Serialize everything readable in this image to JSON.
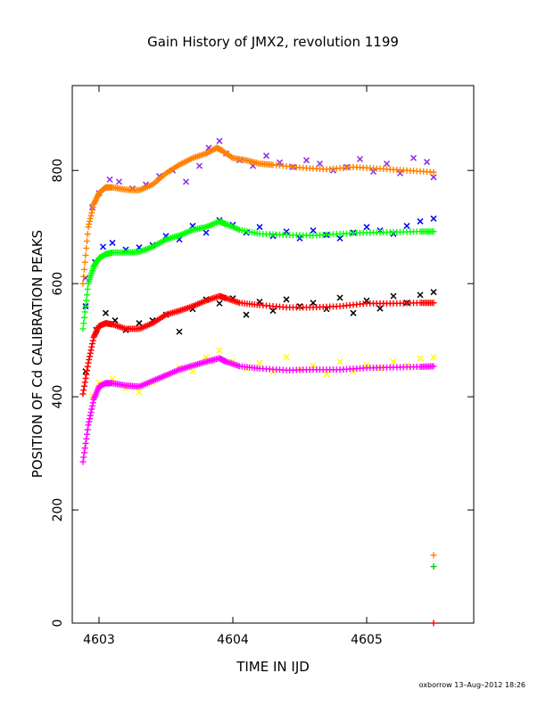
{
  "chart_data": {
    "type": "scatter",
    "title": "Gain History of JMX2, revolution 1199",
    "xlabel": "TIME IN IJD",
    "ylabel": "POSITION OF Cd CALIBRATION PEAKS",
    "xlim": [
      4602.8,
      4605.8
    ],
    "ylim": [
      0,
      950
    ],
    "xticks": [
      4603,
      4604,
      4605
    ],
    "xtick_labels": [
      "4603",
      "4604",
      "4605"
    ],
    "yticks": [
      0,
      200,
      400,
      600,
      800
    ],
    "ytick_labels": [
      "0",
      "200",
      "400",
      "600",
      "800"
    ],
    "footer": "oxborrow 13–Aug–2012 18:26",
    "series": [
      {
        "role": "fit",
        "marker": "plus",
        "color": "#ff8000",
        "x": [
          4602.88,
          4602.92,
          4602.96,
          4603.0,
          4603.05,
          4603.1,
          4603.2,
          4603.3,
          4603.4,
          4603.5,
          4603.6,
          4603.7,
          4603.8,
          4603.88,
          4603.92,
          4604.0,
          4604.1,
          4604.2,
          4604.3,
          4604.5,
          4604.7,
          4604.9,
          4605.1,
          4605.3,
          4605.5
        ],
        "y": [
          600,
          700,
          740,
          760,
          770,
          770,
          766,
          765,
          775,
          795,
          810,
          822,
          830,
          840,
          835,
          822,
          818,
          812,
          810,
          805,
          802,
          806,
          803,
          800,
          797
        ]
      },
      {
        "role": "data",
        "marker": "x",
        "color": "#8a2be2",
        "x": [
          4602.9,
          4602.95,
          4603.0,
          4603.08,
          4603.15,
          4603.25,
          4603.35,
          4603.45,
          4603.55,
          4603.65,
          4603.75,
          4603.82,
          4603.9,
          4603.95,
          4604.05,
          4604.15,
          4604.25,
          4604.35,
          4604.45,
          4604.55,
          4604.65,
          4604.75,
          4604.85,
          4604.95,
          4605.05,
          4605.15,
          4605.25,
          4605.35,
          4605.45,
          4605.5
        ],
        "y": [
          610,
          735,
          760,
          784,
          780,
          768,
          775,
          790,
          800,
          780,
          808,
          840,
          852,
          830,
          818,
          808,
          826,
          814,
          806,
          818,
          812,
          800,
          806,
          820,
          798,
          812,
          795,
          822,
          815,
          788
        ]
      },
      {
        "role": "fit",
        "marker": "plus",
        "color": "#00ff00",
        "x": [
          4602.88,
          4602.92,
          4602.96,
          4603.0,
          4603.05,
          4603.1,
          4603.2,
          4603.3,
          4603.4,
          4603.5,
          4603.6,
          4603.7,
          4603.8,
          4603.9,
          4603.95,
          4604.05,
          4604.2,
          4604.4,
          4604.6,
          4604.8,
          4605.0,
          4605.2,
          4605.4,
          4605.5
        ],
        "y": [
          520,
          600,
          630,
          645,
          652,
          655,
          655,
          656,
          665,
          678,
          685,
          695,
          700,
          710,
          705,
          695,
          688,
          686,
          685,
          688,
          690,
          691,
          692,
          692
        ]
      },
      {
        "role": "data",
        "marker": "x",
        "color": "#0000ff",
        "x": [
          4602.9,
          4602.97,
          4603.03,
          4603.1,
          4603.2,
          4603.3,
          4603.4,
          4603.5,
          4603.6,
          4603.7,
          4603.8,
          4603.9,
          4604.0,
          4604.1,
          4604.2,
          4604.3,
          4604.4,
          4604.5,
          4604.6,
          4604.7,
          4604.8,
          4604.9,
          4605.0,
          4605.1,
          4605.2,
          4605.3,
          4605.4,
          4605.5
        ],
        "y": [
          560,
          638,
          665,
          672,
          660,
          664,
          668,
          684,
          678,
          702,
          690,
          712,
          704,
          690,
          700,
          684,
          692,
          680,
          694,
          686,
          680,
          690,
          700,
          694,
          688,
          702,
          710,
          715
        ]
      },
      {
        "role": "fit",
        "marker": "plus",
        "color": "#ff0000",
        "x": [
          4602.88,
          4602.92,
          4602.96,
          4603.0,
          4603.05,
          4603.1,
          4603.2,
          4603.3,
          4603.4,
          4603.5,
          4603.6,
          4603.7,
          4603.8,
          4603.9,
          4603.95,
          4604.05,
          4604.2,
          4604.4,
          4604.6,
          4604.8,
          4605.0,
          4605.2,
          4605.4,
          4605.5
        ],
        "y": [
          405,
          460,
          505,
          525,
          530,
          528,
          520,
          520,
          530,
          545,
          552,
          560,
          570,
          578,
          574,
          566,
          562,
          558,
          558,
          560,
          565,
          565,
          566,
          566
        ]
      },
      {
        "role": "data",
        "marker": "x",
        "color": "#000000",
        "x": [
          4602.9,
          4602.98,
          4603.05,
          4603.12,
          4603.2,
          4603.3,
          4603.4,
          4603.5,
          4603.6,
          4603.7,
          4603.8,
          4603.9,
          4604.0,
          4604.1,
          4604.2,
          4604.3,
          4604.4,
          4604.5,
          4604.6,
          4604.7,
          4604.8,
          4604.9,
          4605.0,
          4605.1,
          4605.2,
          4605.3,
          4605.4,
          4605.5
        ],
        "y": [
          445,
          518,
          548,
          535,
          518,
          530,
          535,
          545,
          515,
          555,
          572,
          565,
          574,
          545,
          568,
          552,
          572,
          560,
          566,
          555,
          575,
          548,
          570,
          556,
          578,
          566,
          580,
          585
        ]
      },
      {
        "role": "fit",
        "marker": "plus",
        "color": "#ff00ff",
        "x": [
          4602.88,
          4602.92,
          4602.96,
          4603.0,
          4603.05,
          4603.1,
          4603.2,
          4603.3,
          4603.4,
          4603.5,
          4603.6,
          4603.7,
          4603.8,
          4603.9,
          4603.95,
          4604.05,
          4604.2,
          4604.4,
          4604.6,
          4604.8,
          4605.0,
          4605.2,
          4605.4,
          4605.5
        ],
        "y": [
          285,
          350,
          395,
          418,
          424,
          424,
          420,
          418,
          428,
          438,
          448,
          455,
          462,
          468,
          462,
          454,
          450,
          447,
          448,
          448,
          451,
          452,
          453,
          454
        ]
      },
      {
        "role": "data",
        "marker": "x",
        "color": "#ffff00",
        "x": [
          4602.95,
          4603.0,
          4603.1,
          4603.2,
          4603.3,
          4603.4,
          4603.5,
          4603.6,
          4603.7,
          4603.8,
          4603.9,
          4604.0,
          4604.1,
          4604.2,
          4604.3,
          4604.4,
          4604.5,
          4604.6,
          4604.7,
          4604.8,
          4604.9,
          4605.0,
          4605.1,
          4605.2,
          4605.3,
          4605.4,
          4605.5
        ],
        "y": [
          402,
          425,
          432,
          415,
          408,
          425,
          438,
          452,
          445,
          470,
          482,
          462,
          450,
          460,
          444,
          470,
          448,
          455,
          440,
          462,
          445,
          456,
          450,
          462,
          455,
          468,
          470
        ]
      },
      {
        "role": "outlier",
        "marker": "plus",
        "points": [
          {
            "x": 4605.5,
            "y": 120,
            "color": "#ff8000"
          },
          {
            "x": 4605.5,
            "y": 100,
            "color": "#00cc00"
          },
          {
            "x": 4605.5,
            "y": 0,
            "color": "#ff0000"
          }
        ]
      }
    ]
  }
}
